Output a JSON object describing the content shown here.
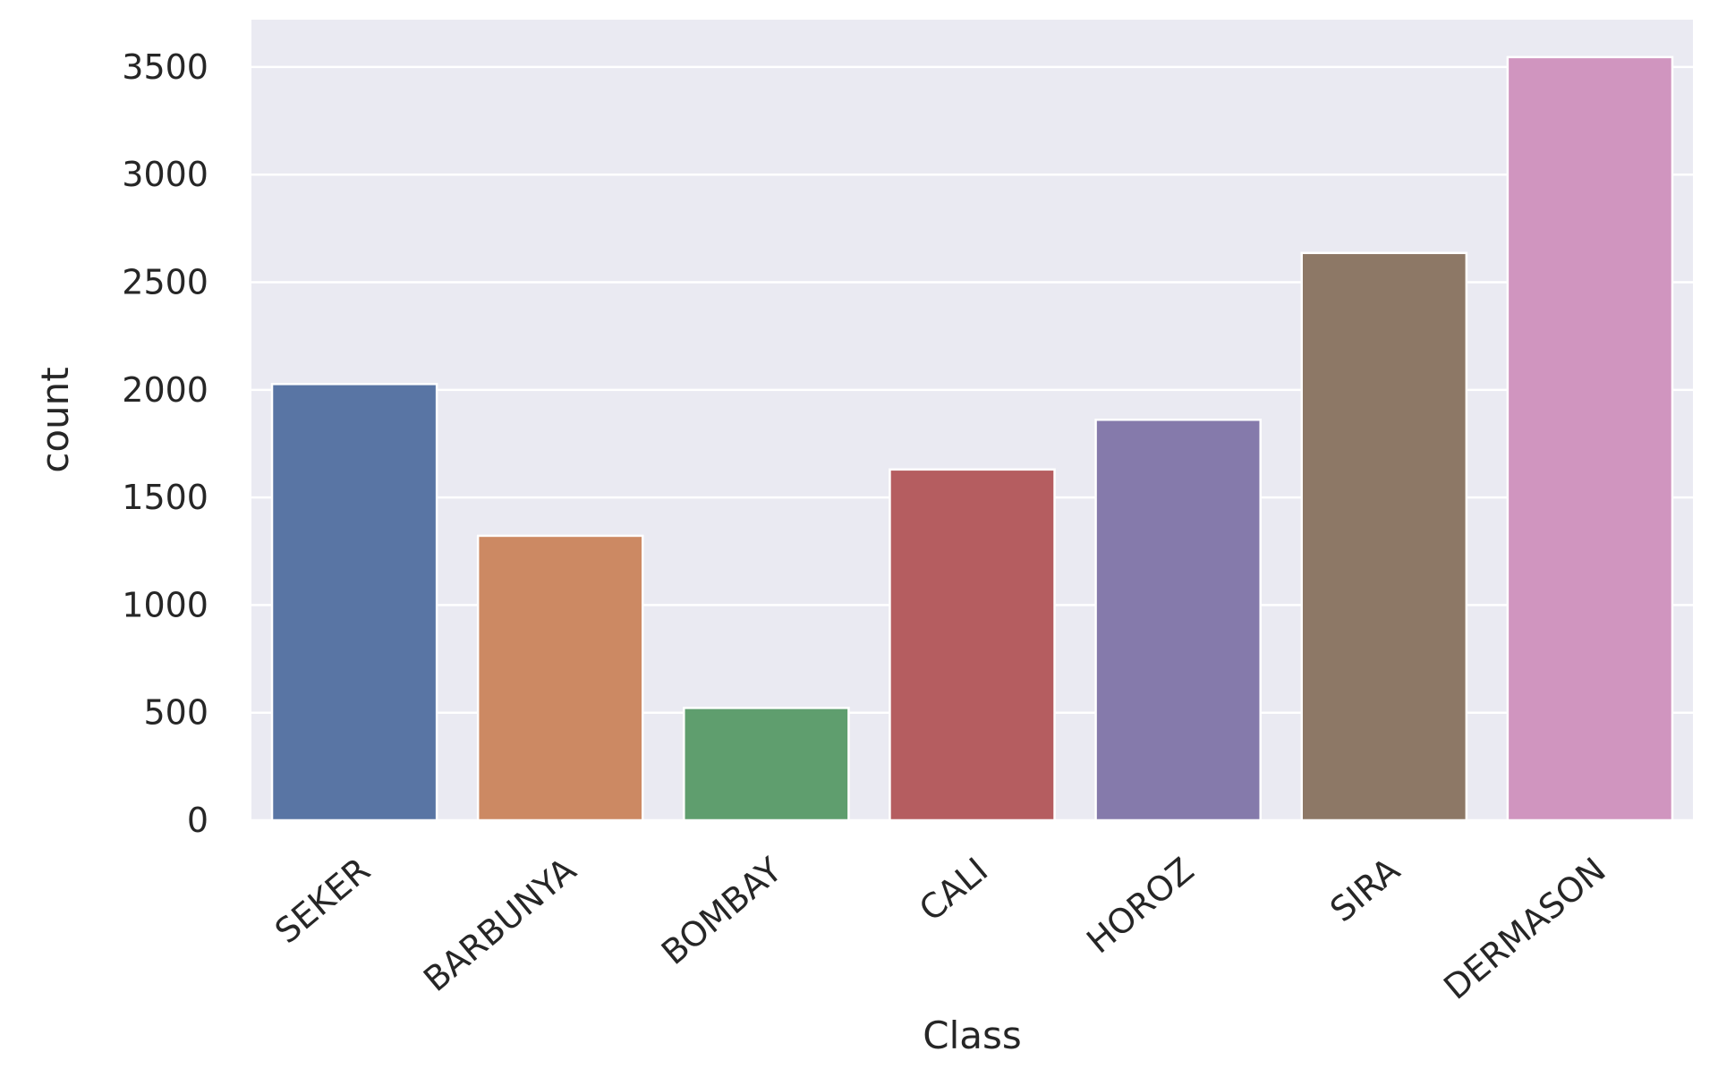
{
  "chart_data": {
    "type": "bar",
    "title": "",
    "xlabel": "Class",
    "ylabel": "count",
    "categories": [
      "SEKER",
      "BARBUNYA",
      "BOMBAY",
      "CALI",
      "HOROZ",
      "SIRA",
      "DERMASON"
    ],
    "values": [
      2027,
      1322,
      522,
      1630,
      1861,
      2636,
      3546
    ],
    "colors": [
      "#5975a4",
      "#cc8963",
      "#5f9e6e",
      "#b55d60",
      "#857aab",
      "#8d7866",
      "#d095bf"
    ],
    "yticks": [
      0,
      500,
      1000,
      1500,
      2000,
      2500,
      3000,
      3500
    ],
    "ylim": [
      0,
      3720
    ],
    "grid": true,
    "background_color": "#eaeaf2",
    "grid_color": "#ffffff",
    "legend": "none"
  }
}
